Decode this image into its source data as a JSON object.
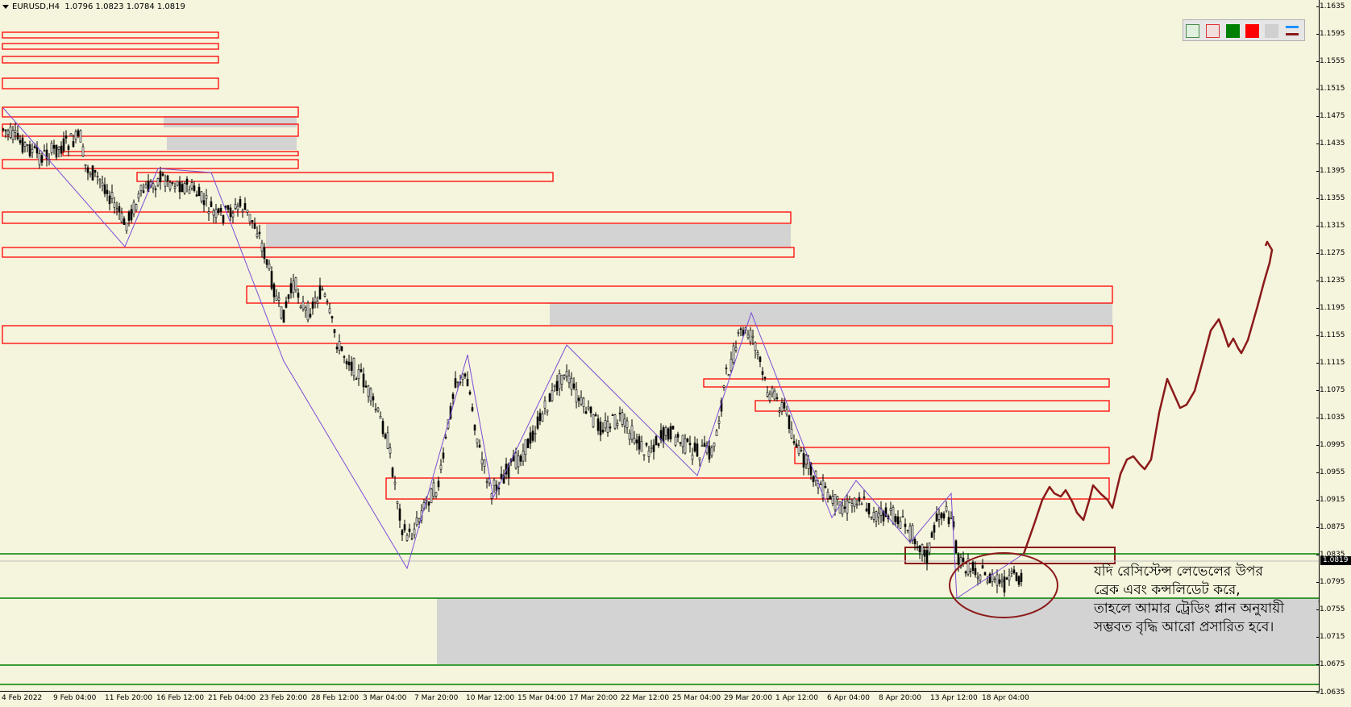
{
  "header": {
    "symbol": "EURUSD,H4",
    "ohlc": "1.0796 1.0823 1.0784 1.0819"
  },
  "price_axis": {
    "ticks": [
      "1.1635",
      "1.1595",
      "1.1555",
      "1.1515",
      "1.1475",
      "1.1435",
      "1.1395",
      "1.1355",
      "1.1315",
      "1.1275",
      "1.1235",
      "1.1195",
      "1.1155",
      "1.1115",
      "1.1075",
      "1.1035",
      "1.0995",
      "1.0955",
      "1.0915",
      "1.0875",
      "1.0835",
      "1.0795",
      "1.0755",
      "1.0715",
      "1.0675",
      "1.0635"
    ],
    "current_price": "1.0819"
  },
  "time_axis": {
    "ticks": [
      "4 Feb 2022",
      "9 Feb 04:00",
      "11 Feb 20:00",
      "16 Feb 12:00",
      "21 Feb 04:00",
      "23 Feb 20:00",
      "28 Feb 12:00",
      "3 Mar 04:00",
      "7 Mar 20:00",
      "10 Mar 12:00",
      "15 Mar 04:00",
      "17 Mar 20:00",
      "22 Mar 12:00",
      "25 Mar 04:00",
      "29 Mar 20:00",
      "1 Apr 12:00",
      "6 Apr 04:00",
      "8 Apr 20:00",
      "13 Apr 12:00",
      "18 Apr 04:00"
    ]
  },
  "annotation": {
    "lines": [
      "যদি রেসিস্টেন্স লেভেলের উপর",
      "ব্রেক এবং কন্সলিডেট করে,",
      "তাহলে আমার ট্রেডিং প্লান অনুযায়ী",
      "সম্ভবত বৃদ্ধি আরো প্রসারিত হবে।"
    ]
  },
  "toolbar": {
    "icons": [
      "template-light-icon",
      "template-pink-icon",
      "green-square-icon",
      "red-square-icon",
      "blank-icon",
      "lines-icon"
    ]
  },
  "colors": {
    "background": "#f5f4dc",
    "zone_border": "#ff0000",
    "zone_fill": "#d3d3d3",
    "green_level": "#008000",
    "zigzag": "#7b4fd6",
    "projection": "#8b1a1a"
  }
}
